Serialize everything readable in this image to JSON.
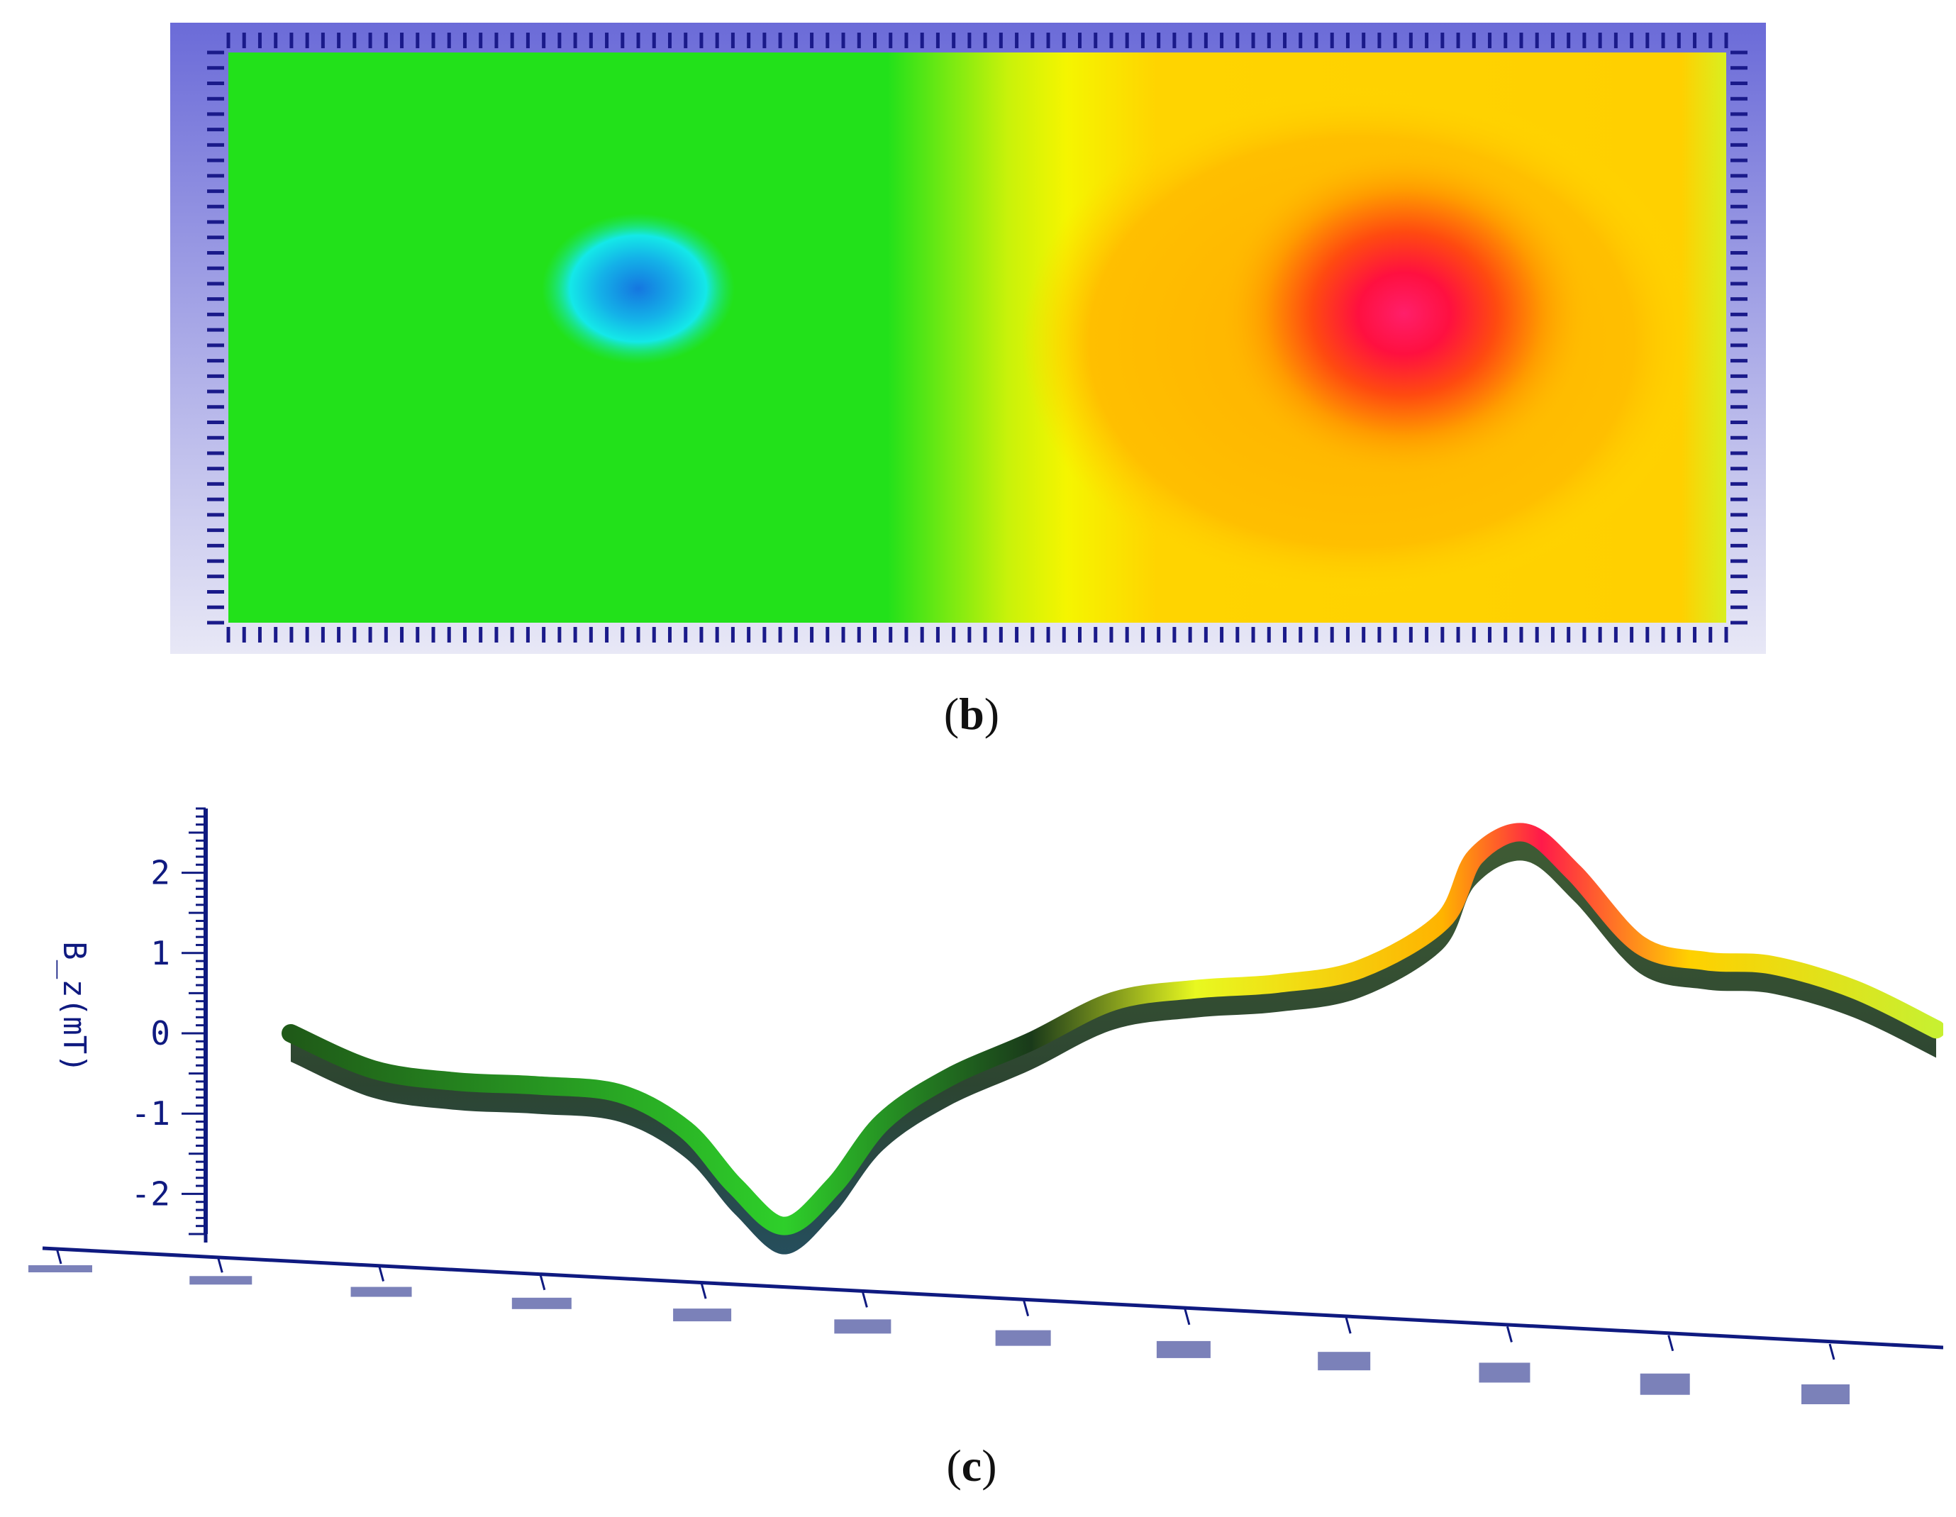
{
  "captions": {
    "b": "b",
    "c": "c"
  },
  "colors": {
    "frame": "#6b6bd8",
    "tick": "#1a1a8a",
    "axis": "#0f1a80",
    "green": "#22e11a",
    "cyan": "#14e8e8",
    "blue": "#1588e0",
    "yellow": "#f5f500",
    "orange": "#ffb800",
    "red": "#ff1040",
    "pink": "#ff1f6a"
  },
  "chart_data": [
    {
      "panel": "b",
      "type": "heatmap",
      "title": "",
      "description_of_field": "2D map of B_z",
      "features": [
        {
          "kind": "minimum",
          "label": "",
          "region": "left",
          "value": -2.5
        },
        {
          "kind": "maximum",
          "label": "",
          "region": "right",
          "value": 2.5
        }
      ]
    },
    {
      "panel": "c",
      "type": "line",
      "ylabel": "B_z(mT)",
      "yticks": [
        2,
        1,
        0,
        -1,
        -2
      ],
      "ylim": [
        -2.5,
        2.8
      ],
      "series": [
        {
          "x": [
            0.0,
            0.05,
            0.1,
            0.15,
            0.2,
            0.24,
            0.27,
            0.3,
            0.33,
            0.36,
            0.4,
            0.45,
            0.5,
            0.55,
            0.6,
            0.65,
            0.7,
            0.72,
            0.75,
            0.78,
            0.82,
            0.86,
            0.9,
            0.95,
            1.0
          ],
          "y": [
            0.0,
            -0.45,
            -0.6,
            -0.65,
            -0.75,
            -1.2,
            -1.9,
            -2.4,
            -1.9,
            -1.1,
            -0.55,
            -0.1,
            0.4,
            0.55,
            0.62,
            0.8,
            1.4,
            2.2,
            2.5,
            2.0,
            1.1,
            0.9,
            0.85,
            0.55,
            0.05
          ]
        }
      ]
    }
  ]
}
